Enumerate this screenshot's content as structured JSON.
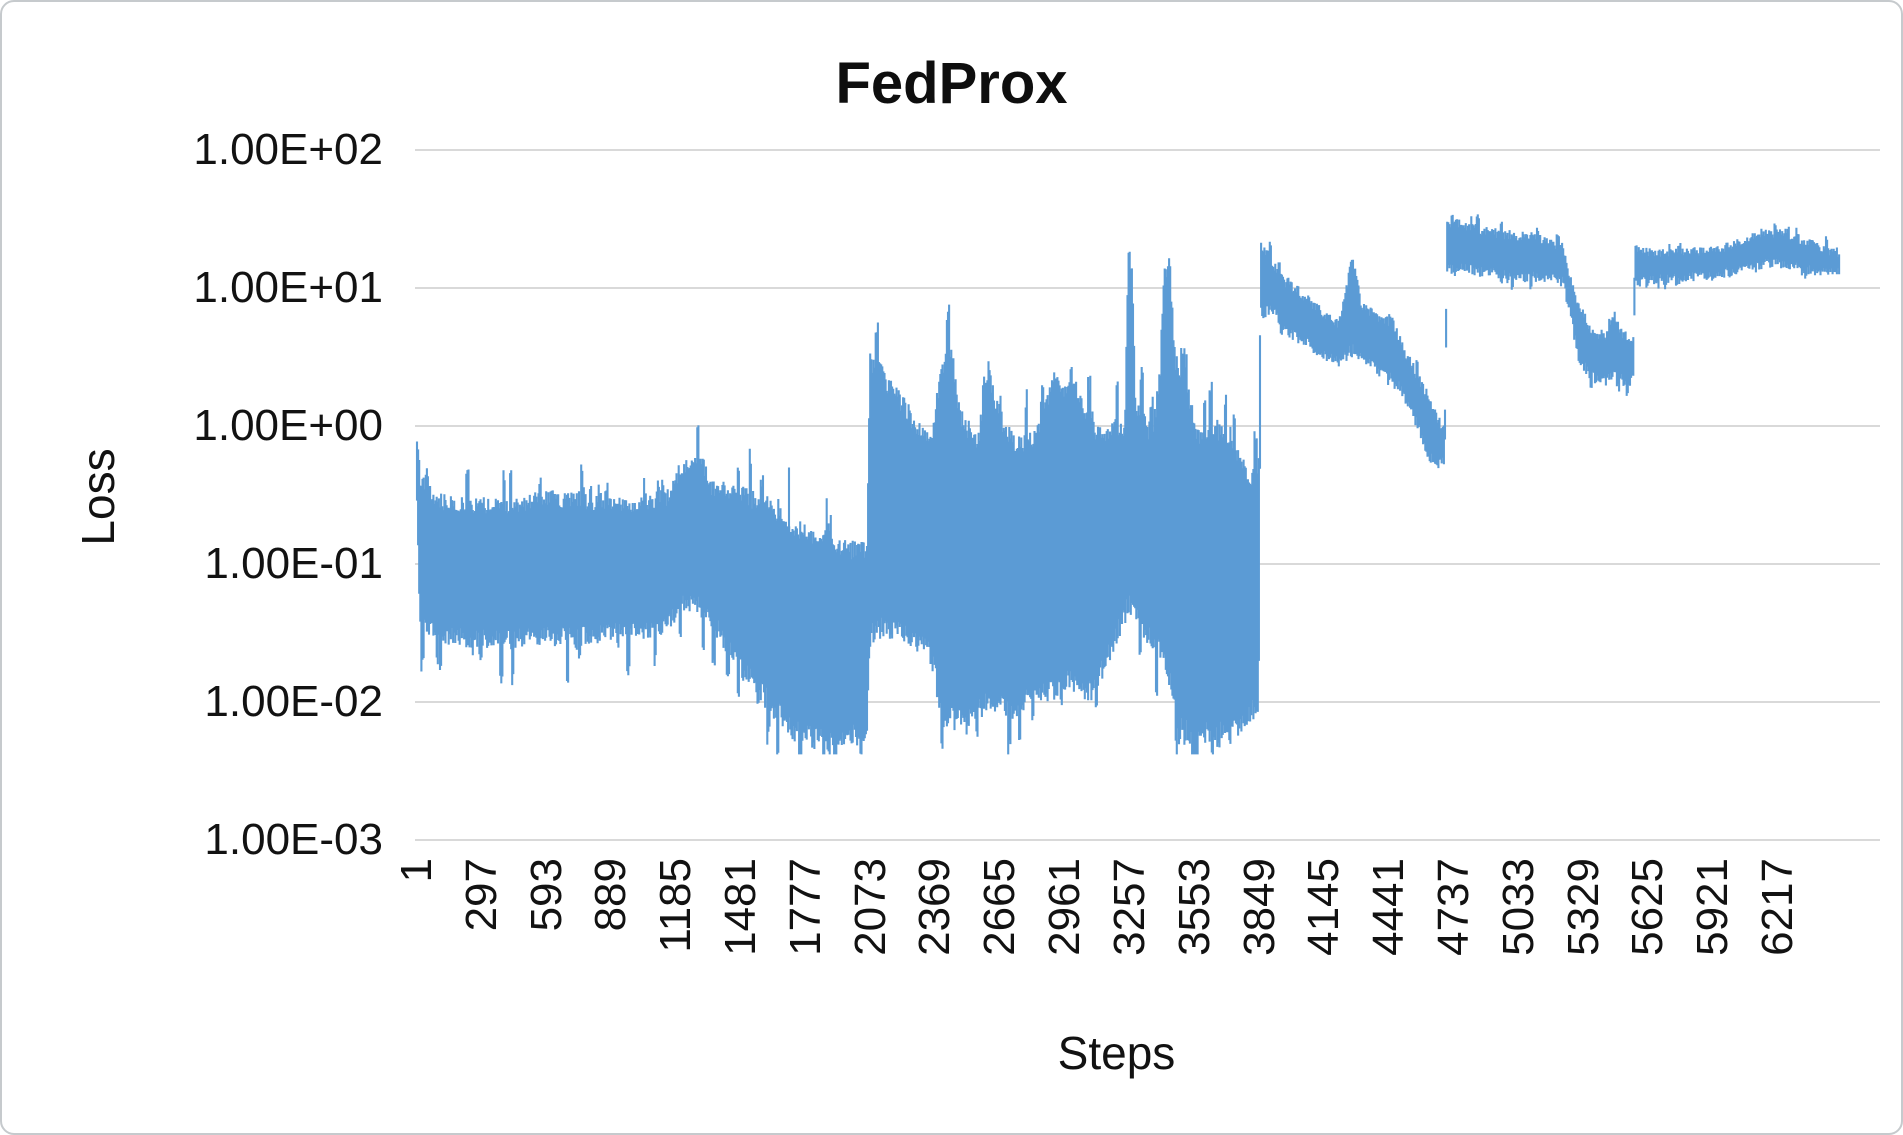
{
  "colors": {
    "series": "#5B9BD5",
    "gridline": "#D9D9D9",
    "text": "#121212",
    "canvas_border": "#C6CACD",
    "background": "#FFFFFF"
  },
  "chart_data": {
    "type": "line",
    "title": "FedProx",
    "xlabel": "Steps",
    "ylabel": "Loss",
    "y_scale": "log",
    "ylim": [
      0.001,
      100
    ],
    "grid": "horizontal",
    "legend": "none",
    "y_ticks": [
      "1.00E+02",
      "1.00E+01",
      "1.00E+00",
      "1.00E-01",
      "1.00E-02",
      "1.00E-03"
    ],
    "x_ticks": [
      1,
      297,
      593,
      889,
      1185,
      1481,
      1777,
      2073,
      2369,
      2665,
      2961,
      3257,
      3553,
      3849,
      4145,
      4441,
      4737,
      5033,
      5329,
      5625,
      5921,
      6217
    ],
    "x_max": 6500,
    "series": [
      {
        "name": "Loss",
        "color": "#5B9BD5",
        "style": "dense noisy line rendered as a solid band; envelope entries are [step, min_loss, max_loss]",
        "envelope": [
          [
            1,
            0.3,
            0.75
          ],
          [
            15,
            0.035,
            0.42
          ],
          [
            100,
            0.03,
            0.28
          ],
          [
            350,
            0.028,
            0.26
          ],
          [
            650,
            0.03,
            0.3
          ],
          [
            950,
            0.032,
            0.27
          ],
          [
            1140,
            0.035,
            0.3
          ],
          [
            1200,
            0.05,
            0.48
          ],
          [
            1290,
            0.05,
            0.6
          ],
          [
            1345,
            0.04,
            0.36
          ],
          [
            1480,
            0.018,
            0.32
          ],
          [
            1610,
            0.01,
            0.26
          ],
          [
            1700,
            0.0065,
            0.2
          ],
          [
            1800,
            0.0055,
            0.15
          ],
          [
            1960,
            0.0055,
            0.13
          ],
          [
            2055,
            0.006,
            0.12
          ],
          [
            2070,
            0.03,
            2.85
          ],
          [
            2130,
            0.035,
            2.3
          ],
          [
            2240,
            0.03,
            1.25
          ],
          [
            2355,
            0.022,
            0.75
          ],
          [
            2395,
            0.008,
            2.7
          ],
          [
            2445,
            0.0075,
            3.1
          ],
          [
            2485,
            0.0075,
            1.1
          ],
          [
            2565,
            0.009,
            0.8
          ],
          [
            2605,
            0.01,
            2.0
          ],
          [
            2655,
            0.01,
            1.25
          ],
          [
            2730,
            0.009,
            0.7
          ],
          [
            2830,
            0.012,
            0.85
          ],
          [
            2905,
            0.012,
            2.1
          ],
          [
            2965,
            0.015,
            1.85
          ],
          [
            3015,
            0.013,
            1.9
          ],
          [
            3090,
            0.012,
            0.85
          ],
          [
            3190,
            0.03,
            0.95
          ],
          [
            3235,
            0.045,
            1.0
          ],
          [
            3248,
            0.05,
            15.8
          ],
          [
            3266,
            0.05,
            16.2
          ],
          [
            3282,
            0.04,
            1.3
          ],
          [
            3360,
            0.028,
            0.85
          ],
          [
            3395,
            0.025,
            2.4
          ],
          [
            3412,
            0.02,
            12.6
          ],
          [
            3438,
            0.015,
            13.0
          ],
          [
            3465,
            0.008,
            2.9
          ],
          [
            3520,
            0.006,
            1.7
          ],
          [
            3565,
            0.006,
            0.85
          ],
          [
            3645,
            0.006,
            0.95
          ],
          [
            3715,
            0.006,
            0.85
          ],
          [
            3765,
            0.007,
            0.5
          ],
          [
            3845,
            0.01,
            0.4
          ],
          [
            3855,
            6.5,
            19.5
          ],
          [
            3905,
            7.0,
            15.5
          ],
          [
            3965,
            5.0,
            11.0
          ],
          [
            4045,
            4.2,
            9.0
          ],
          [
            4145,
            3.2,
            6.4
          ],
          [
            4215,
            2.9,
            5.4
          ],
          [
            4262,
            3.5,
            13.5
          ],
          [
            4288,
            3.5,
            13.0
          ],
          [
            4315,
            3.0,
            7.5
          ],
          [
            4390,
            2.8,
            6.0
          ],
          [
            4455,
            2.4,
            5.6
          ],
          [
            4515,
            1.6,
            3.4
          ],
          [
            4575,
            1.0,
            2.2
          ],
          [
            4625,
            0.6,
            1.5
          ],
          [
            4668,
            0.52,
            1.05
          ],
          [
            4695,
            0.58,
            1.0
          ],
          [
            4705,
            13.5,
            30.0
          ],
          [
            4770,
            14.0,
            29.0
          ],
          [
            4860,
            13.0,
            26.5
          ],
          [
            4960,
            12.5,
            24.5
          ],
          [
            5070,
            12.0,
            23.5
          ],
          [
            5160,
            12.0,
            22.5
          ],
          [
            5235,
            11.0,
            19.5
          ],
          [
            5268,
            6.5,
            12.0
          ],
          [
            5305,
            3.2,
            7.4
          ],
          [
            5365,
            2.3,
            5.0
          ],
          [
            5425,
            2.1,
            4.3
          ],
          [
            5462,
            2.4,
            6.8
          ],
          [
            5495,
            2.2,
            4.8
          ],
          [
            5540,
            2.0,
            4.2
          ],
          [
            5556,
            2.2,
            4.4
          ],
          [
            5564,
            11.0,
            19.2
          ],
          [
            5650,
            11.5,
            17.8
          ],
          [
            5800,
            12.0,
            18.2
          ],
          [
            5940,
            12.5,
            19.0
          ],
          [
            6060,
            14.0,
            22.0
          ],
          [
            6150,
            15.0,
            25.5
          ],
          [
            6250,
            15.0,
            24.5
          ],
          [
            6360,
            13.5,
            21.0
          ],
          [
            6450,
            13.0,
            18.5
          ],
          [
            6500,
            13.2,
            17.5
          ]
        ],
        "spikes": [
          [
            560,
            0.38
          ],
          [
            763,
            0.36
          ],
          [
            1038,
            0.42
          ],
          [
            1258,
            0.55
          ],
          [
            1700,
            0.5
          ],
          [
            1872,
            0.3
          ],
          [
            2597,
            2.05
          ],
          [
            3003,
            2.0
          ],
          [
            3648,
            1.0
          ]
        ]
      }
    ]
  }
}
